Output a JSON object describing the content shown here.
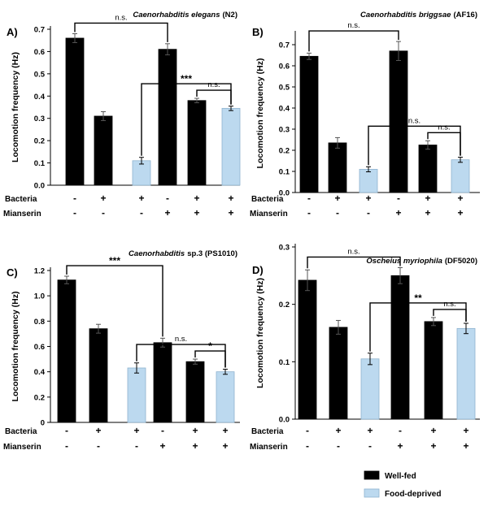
{
  "legend": {
    "well_fed": "Well-fed",
    "food_deprived": "Food-deprived",
    "colors": {
      "well_fed": "#000000",
      "food_deprived": "#bcd9ef"
    }
  },
  "chart_data": [
    {
      "type": "bar",
      "panel": "A)",
      "title_species": "Caenorhabditis elegans",
      "title_strain": "(N2)",
      "ylabel": "Locomotion frequency (Hz)",
      "ylim": [
        0,
        0.7
      ],
      "yticks": [
        "0.0",
        "0.1",
        "0.2",
        "0.3",
        "0.4",
        "0.5",
        "0.6",
        "0.7"
      ],
      "bacteria_label": "Bacteria",
      "mianserin_label": "Mianserin",
      "bacteria": [
        "-",
        "+",
        "+",
        "-",
        "+",
        "+"
      ],
      "mianserin": [
        "-",
        "-",
        "-",
        "+",
        "+",
        "+"
      ],
      "values": [
        0.66,
        0.31,
        0.11,
        0.61,
        0.38,
        0.345
      ],
      "errors": [
        0.02,
        0.02,
        0.015,
        0.025,
        0.01,
        0.01
      ],
      "condition": [
        "well-fed",
        "well-fed",
        "food-deprived",
        "well-fed",
        "well-fed",
        "food-deprived"
      ],
      "comparisons": [
        {
          "bars": [
            0,
            3
          ],
          "label": "n.s."
        },
        {
          "bars": [
            2,
            5
          ],
          "label": "***"
        },
        {
          "bars": [
            4,
            5
          ],
          "label": "n.s."
        }
      ]
    },
    {
      "type": "bar",
      "panel": "B)",
      "title_species": "Caenorhabditis briggsae",
      "title_strain": "(AF16)",
      "ylabel": "Locomotion frequency (Hz)",
      "ylim": [
        0,
        0.75
      ],
      "yticks": [
        "0.0",
        "0.1",
        "0.2",
        "0.3",
        "0.4",
        "0.5",
        "0.6",
        "0.7"
      ],
      "bacteria_label": "Bacteria",
      "mianserin_label": "Mianserin",
      "bacteria": [
        "-",
        "+",
        "+",
        "-",
        "+",
        "+"
      ],
      "mianserin": [
        "-",
        "-",
        "-",
        "+",
        "+",
        "+"
      ],
      "values": [
        0.645,
        0.235,
        0.11,
        0.67,
        0.225,
        0.155
      ],
      "errors": [
        0.015,
        0.025,
        0.012,
        0.045,
        0.02,
        0.012
      ],
      "condition": [
        "well-fed",
        "well-fed",
        "food-deprived",
        "well-fed",
        "well-fed",
        "food-deprived"
      ],
      "comparisons": [
        {
          "bars": [
            0,
            3
          ],
          "label": "n.s."
        },
        {
          "bars": [
            2,
            5
          ],
          "label": "n.s."
        },
        {
          "bars": [
            4,
            5
          ],
          "label": "n.s."
        }
      ]
    },
    {
      "type": "bar",
      "panel": "C)",
      "title_species": "Caenorhabditis",
      "title_strain": "sp.3  (PS1010)",
      "ylabel": "Locomotion frequency (Hz)",
      "ylim": [
        0,
        1.2
      ],
      "yticks": [
        "0",
        "0.2",
        "0.4",
        "0.6",
        "0.8",
        "1.0",
        "1.2"
      ],
      "bacteria_label": "Bacteria",
      "mianserin_label": "Mianserin",
      "bacteria": [
        "-",
        "+",
        "+",
        "-",
        "+",
        "+"
      ],
      "mianserin": [
        "-",
        "-",
        "-",
        "+",
        "+",
        "+"
      ],
      "values": [
        1.125,
        0.74,
        0.43,
        0.63,
        0.48,
        0.4
      ],
      "errors": [
        0.03,
        0.035,
        0.04,
        0.035,
        0.02,
        0.02
      ],
      "condition": [
        "well-fed",
        "well-fed",
        "food-deprived",
        "well-fed",
        "well-fed",
        "food-deprived"
      ],
      "comparisons": [
        {
          "bars": [
            0,
            3
          ],
          "label": "***"
        },
        {
          "bars": [
            2,
            5
          ],
          "label": "n.s."
        },
        {
          "bars": [
            4,
            5
          ],
          "label": "*"
        }
      ]
    },
    {
      "type": "bar",
      "panel": "D)",
      "title_species": "Oscheius myriophila",
      "title_strain": "(DF5020)",
      "ylabel": "Locomotion frequency (Hz)",
      "ylim": [
        0,
        0.3
      ],
      "yticks": [
        "0.0",
        "0.1",
        "0.2",
        "0.3"
      ],
      "bacteria_label": "Bacteria",
      "mianserin_label": "Mianserin",
      "bacteria": [
        "-",
        "+",
        "+",
        "-",
        "+",
        "+"
      ],
      "mianserin": [
        "-",
        "-",
        "-",
        "+",
        "+",
        "+"
      ],
      "values": [
        0.242,
        0.16,
        0.105,
        0.25,
        0.17,
        0.158
      ],
      "errors": [
        0.018,
        0.012,
        0.01,
        0.014,
        0.007,
        0.009
      ],
      "condition": [
        "well-fed",
        "well-fed",
        "food-deprived",
        "well-fed",
        "well-fed",
        "food-deprived"
      ],
      "comparisons": [
        {
          "bars": [
            0,
            3
          ],
          "label": "n.s."
        },
        {
          "bars": [
            2,
            5
          ],
          "label": "**"
        },
        {
          "bars": [
            4,
            5
          ],
          "label": "n.s."
        }
      ]
    }
  ]
}
